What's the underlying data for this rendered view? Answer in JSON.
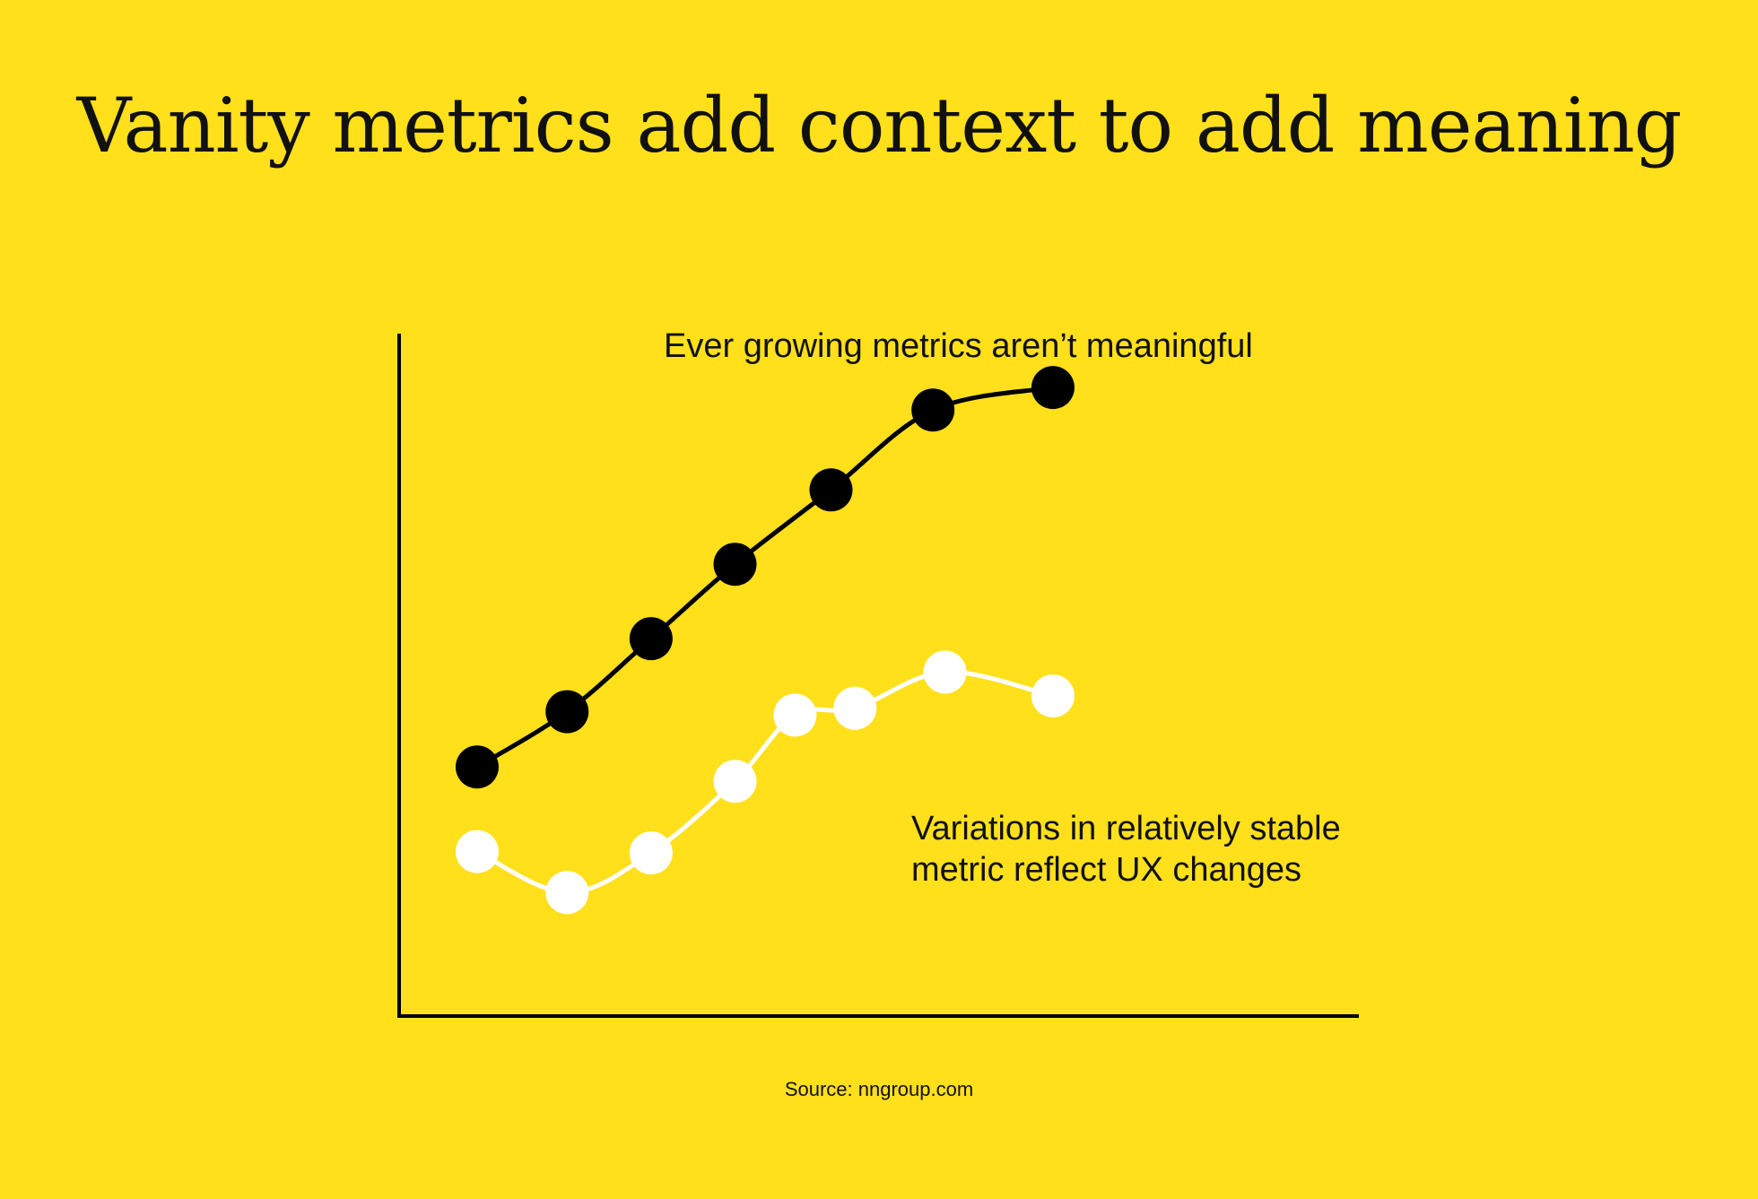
{
  "title": "Vanity metrics add context to add meaning",
  "source": "Source: nngroup.com",
  "colors": {
    "background": "#FFE01B",
    "growing_series": "#000000",
    "stable_series": "#FFFFFF",
    "axis": "#000000"
  },
  "chart_data": {
    "type": "line",
    "title": "",
    "xlabel": "",
    "ylabel": "",
    "grid": false,
    "axes": {
      "x_visible": true,
      "y_visible": true,
      "ticks": false
    },
    "xlim": [
      0,
      8
    ],
    "ylim": [
      0,
      100
    ],
    "annotations": [
      {
        "series_index": 0,
        "text": "Ever growing metrics aren’t meaningful"
      },
      {
        "series_index": 1,
        "lines": [
          "Variations in relatively stable",
          "metric reflect UX changes"
        ]
      }
    ],
    "series": [
      {
        "name": "",
        "color": "#000000",
        "points": [
          {
            "x": 0.65,
            "y": 36.5
          },
          {
            "x": 1.4,
            "y": 44.6
          },
          {
            "x": 2.1,
            "y": 55.3
          },
          {
            "x": 2.8,
            "y": 66.2
          },
          {
            "x": 3.6,
            "y": 77.1
          },
          {
            "x": 4.45,
            "y": 88.8
          },
          {
            "x": 5.45,
            "y": 92.1
          }
        ]
      },
      {
        "name": "",
        "color": "#FFFFFF",
        "points": [
          {
            "x": 0.65,
            "y": 24.1
          },
          {
            "x": 1.4,
            "y": 18.1
          },
          {
            "x": 2.1,
            "y": 23.9
          },
          {
            "x": 2.8,
            "y": 34.4
          },
          {
            "x": 3.3,
            "y": 44.1
          },
          {
            "x": 3.8,
            "y": 45.1
          },
          {
            "x": 4.55,
            "y": 50.4
          },
          {
            "x": 5.45,
            "y": 46.9
          }
        ]
      }
    ]
  }
}
